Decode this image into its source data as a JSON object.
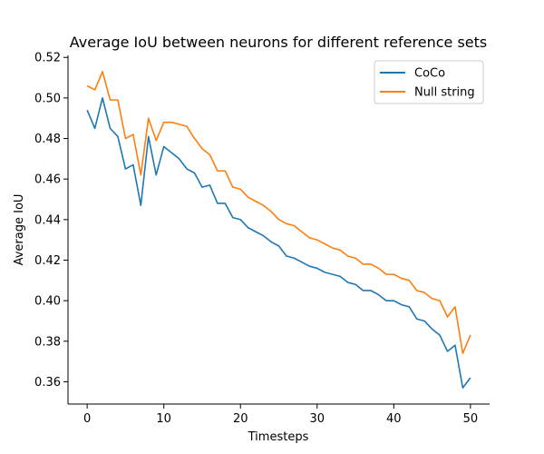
{
  "chart_data": {
    "type": "line",
    "title": "Average IoU between neurons for different reference sets",
    "xlabel": "Timesteps",
    "ylabel": "Average IoU",
    "xlim": [
      -2.5,
      52.5
    ],
    "ylim": [
      0.349,
      0.521
    ],
    "xticks": [
      0,
      10,
      20,
      30,
      40,
      50
    ],
    "xtick_labels": [
      "0",
      "10",
      "20",
      "30",
      "40",
      "50"
    ],
    "yticks": [
      0.36,
      0.38,
      0.4,
      0.42,
      0.44,
      0.46,
      0.48,
      0.5,
      0.52
    ],
    "ytick_labels": [
      "0.36",
      "0.38",
      "0.40",
      "0.42",
      "0.44",
      "0.46",
      "0.48",
      "0.50",
      "0.52"
    ],
    "grid": false,
    "legend_position": "top-right",
    "x": [
      0,
      1,
      2,
      3,
      4,
      5,
      6,
      7,
      8,
      9,
      10,
      11,
      12,
      13,
      14,
      15,
      16,
      17,
      18,
      19,
      20,
      21,
      22,
      23,
      24,
      25,
      26,
      27,
      28,
      29,
      30,
      31,
      32,
      33,
      34,
      35,
      36,
      37,
      38,
      39,
      40,
      41,
      42,
      43,
      44,
      45,
      46,
      47,
      48,
      49,
      50
    ],
    "series": [
      {
        "name": "CoCo",
        "color": "#1f77b4",
        "values": [
          0.494,
          0.485,
          0.5,
          0.485,
          0.481,
          0.465,
          0.467,
          0.447,
          0.481,
          0.462,
          0.476,
          0.473,
          0.47,
          0.465,
          0.463,
          0.456,
          0.457,
          0.448,
          0.448,
          0.441,
          0.44,
          0.436,
          0.434,
          0.432,
          0.429,
          0.427,
          0.422,
          0.421,
          0.419,
          0.417,
          0.416,
          0.414,
          0.413,
          0.412,
          0.409,
          0.408,
          0.405,
          0.405,
          0.403,
          0.4,
          0.4,
          0.398,
          0.397,
          0.391,
          0.39,
          0.386,
          0.383,
          0.375,
          0.378,
          0.357,
          0.362
        ]
      },
      {
        "name": "Null string",
        "color": "#ff7f0e",
        "values": [
          0.506,
          0.504,
          0.513,
          0.499,
          0.499,
          0.48,
          0.482,
          0.462,
          0.49,
          0.479,
          0.488,
          0.488,
          0.487,
          0.486,
          0.48,
          0.475,
          0.472,
          0.464,
          0.464,
          0.456,
          0.455,
          0.451,
          0.449,
          0.447,
          0.444,
          0.44,
          0.438,
          0.437,
          0.434,
          0.431,
          0.43,
          0.428,
          0.426,
          0.425,
          0.422,
          0.421,
          0.418,
          0.418,
          0.416,
          0.413,
          0.413,
          0.411,
          0.41,
          0.405,
          0.404,
          0.401,
          0.4,
          0.392,
          0.397,
          0.374,
          0.383
        ]
      }
    ]
  }
}
